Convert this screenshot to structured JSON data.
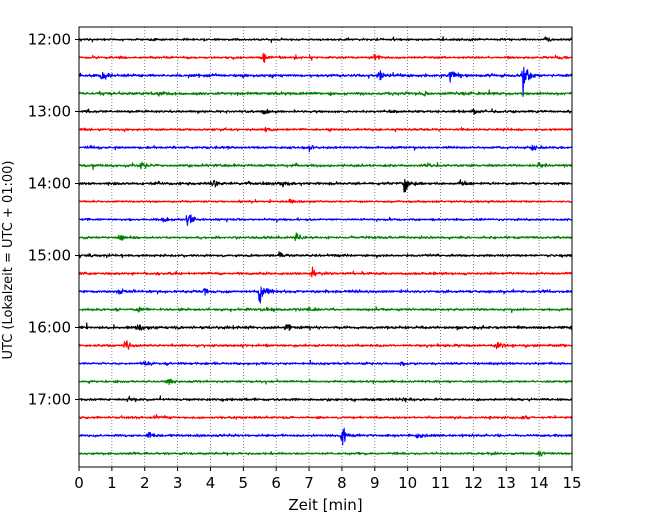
{
  "chart_data": {
    "type": "line",
    "title": "",
    "xlabel": "Zeit  [min]",
    "ylabel": "UTC (Lokalzeit = UTC + 01:00)",
    "xlim": [
      0,
      15
    ],
    "x_ticks": [
      0,
      1,
      2,
      3,
      4,
      5,
      6,
      7,
      8,
      9,
      10,
      11,
      12,
      13,
      14,
      15
    ],
    "y_tick_labels": [
      "12:00",
      "13:00",
      "14:00",
      "15:00",
      "16:00",
      "17:00"
    ],
    "grid": "vertical dotted",
    "colors": [
      "#000000",
      "#ff0000",
      "#0000ff",
      "#008000"
    ],
    "series": [
      {
        "time": "12:00",
        "color": "#000000",
        "noise": 0.9,
        "events": [
          {
            "x": 14.2,
            "amp": 3
          }
        ]
      },
      {
        "time": "12:15",
        "color": "#ff0000",
        "noise": 0.9,
        "events": [
          {
            "x": 5.6,
            "amp": 4
          },
          {
            "x": 9.0,
            "amp": 3
          }
        ]
      },
      {
        "time": "12:30",
        "color": "#0000ff",
        "noise": 1.2,
        "events": [
          {
            "x": 0.7,
            "amp": 5
          },
          {
            "x": 9.1,
            "amp": 6
          },
          {
            "x": 11.3,
            "amp": 11
          },
          {
            "x": 13.5,
            "amp": 17
          }
        ]
      },
      {
        "time": "12:45",
        "color": "#008000",
        "noise": 1.2,
        "events": [
          {
            "x": 2.4,
            "amp": 3
          },
          {
            "x": 10.5,
            "amp": 3
          }
        ]
      },
      {
        "time": "13:00",
        "color": "#000000",
        "noise": 1.0,
        "events": [
          {
            "x": 5.6,
            "amp": 3
          },
          {
            "x": 12.0,
            "amp": 3
          }
        ]
      },
      {
        "time": "13:15",
        "color": "#ff0000",
        "noise": 0.9,
        "events": [
          {
            "x": 5.7,
            "amp": 3
          }
        ]
      },
      {
        "time": "13:30",
        "color": "#0000ff",
        "noise": 1.0,
        "events": [
          {
            "x": 7.0,
            "amp": 3
          },
          {
            "x": 13.8,
            "amp": 3
          }
        ]
      },
      {
        "time": "13:45",
        "color": "#008000",
        "noise": 1.1,
        "events": [
          {
            "x": 1.9,
            "amp": 3
          },
          {
            "x": 14.0,
            "amp": 3
          }
        ]
      },
      {
        "time": "14:00",
        "color": "#000000",
        "noise": 1.1,
        "events": [
          {
            "x": 4.1,
            "amp": 4
          },
          {
            "x": 6.2,
            "amp": 3
          },
          {
            "x": 9.9,
            "amp": 8
          },
          {
            "x": 11.6,
            "amp": 4
          }
        ]
      },
      {
        "time": "14:15",
        "color": "#ff0000",
        "noise": 0.8,
        "events": [
          {
            "x": 6.4,
            "amp": 2
          }
        ]
      },
      {
        "time": "14:30",
        "color": "#0000ff",
        "noise": 0.9,
        "events": [
          {
            "x": 2.5,
            "amp": 3
          },
          {
            "x": 3.3,
            "amp": 9
          }
        ]
      },
      {
        "time": "14:45",
        "color": "#008000",
        "noise": 1.0,
        "events": [
          {
            "x": 1.2,
            "amp": 3
          },
          {
            "x": 6.6,
            "amp": 4
          }
        ]
      },
      {
        "time": "15:00",
        "color": "#000000",
        "noise": 1.0,
        "events": [
          {
            "x": 6.1,
            "amp": 4
          }
        ]
      },
      {
        "time": "15:15",
        "color": "#ff0000",
        "noise": 1.0,
        "events": [
          {
            "x": 7.1,
            "amp": 5
          }
        ]
      },
      {
        "time": "15:30",
        "color": "#0000ff",
        "noise": 1.1,
        "events": [
          {
            "x": 1.2,
            "amp": 3
          },
          {
            "x": 3.8,
            "amp": 3
          },
          {
            "x": 5.5,
            "amp": 15
          }
        ]
      },
      {
        "time": "15:45",
        "color": "#008000",
        "noise": 1.0,
        "events": [
          {
            "x": 1.8,
            "amp": 3
          },
          {
            "x": 7.0,
            "amp": 3
          }
        ]
      },
      {
        "time": "16:00",
        "color": "#000000",
        "noise": 1.2,
        "events": [
          {
            "x": 1.8,
            "amp": 4
          },
          {
            "x": 6.3,
            "amp": 4
          },
          {
            "x": 15.0,
            "amp": 6
          }
        ]
      },
      {
        "time": "16:15",
        "color": "#ff0000",
        "noise": 1.0,
        "events": [
          {
            "x": 1.4,
            "amp": 6
          },
          {
            "x": 12.7,
            "amp": 5
          }
        ]
      },
      {
        "time": "16:30",
        "color": "#0000ff",
        "noise": 0.9,
        "events": [
          {
            "x": 2.0,
            "amp": 3
          },
          {
            "x": 9.8,
            "amp": 3
          }
        ]
      },
      {
        "time": "16:45",
        "color": "#008000",
        "noise": 0.9,
        "events": [
          {
            "x": 2.7,
            "amp": 3
          }
        ]
      },
      {
        "time": "17:00",
        "color": "#000000",
        "noise": 1.0,
        "events": [
          {
            "x": 1.5,
            "amp": 3
          },
          {
            "x": 9.9,
            "amp": 3
          }
        ]
      },
      {
        "time": "17:15",
        "color": "#ff0000",
        "noise": 0.9,
        "events": [
          {
            "x": 2.3,
            "amp": 3
          },
          {
            "x": 13.5,
            "amp": 3
          }
        ]
      },
      {
        "time": "17:30",
        "color": "#0000ff",
        "noise": 1.0,
        "events": [
          {
            "x": 2.1,
            "amp": 5
          },
          {
            "x": 8.0,
            "amp": 10
          },
          {
            "x": 10.3,
            "amp": 4
          }
        ]
      },
      {
        "time": "17:45",
        "color": "#008000",
        "noise": 0.9,
        "events": [
          {
            "x": 14.0,
            "amp": 3
          }
        ]
      }
    ]
  }
}
